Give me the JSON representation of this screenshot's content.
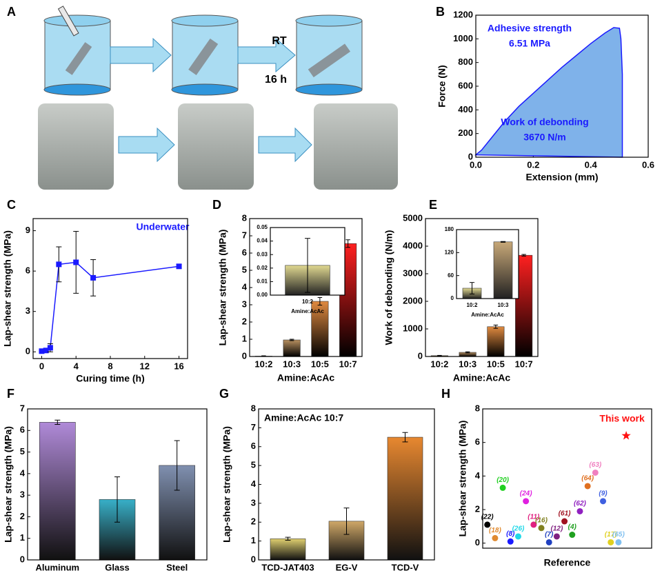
{
  "panel_a": {
    "label": "A",
    "annotations": [
      "RT",
      "16 h"
    ]
  },
  "chart_data": [
    {
      "label": "B",
      "type": "area",
      "x": [
        0,
        0.02,
        0.05,
        0.1,
        0.15,
        0.2,
        0.25,
        0.3,
        0.35,
        0.4,
        0.45,
        0.48,
        0.5,
        0.505,
        0.51,
        0.51
      ],
      "values": [
        20,
        60,
        150,
        300,
        430,
        540,
        650,
        760,
        860,
        960,
        1050,
        1095,
        1090,
        1000,
        700,
        0
      ],
      "color": "#1a1aff",
      "fill": "#7fb2ea",
      "xlim": [
        0,
        0.6
      ],
      "xticks": [
        {
          "value": 0,
          "label": "0.0"
        },
        0.2,
        0.4,
        0.6
      ],
      "ylim": [
        0,
        1200
      ],
      "yticks": [
        0,
        200,
        400,
        600,
        800,
        1000,
        1200
      ],
      "xlabel": "Extension (mm)",
      "ylabel": "Force (N)",
      "annotations": [
        "Adhesive strength",
        "6.51 MPa",
        "Work of debonding",
        "3670 N/m"
      ],
      "annotation_color": "#1a1aff"
    },
    {
      "label": "C",
      "type": "line",
      "x": [
        0,
        0.5,
        1,
        2,
        4,
        6,
        16
      ],
      "values": [
        0.05,
        0.1,
        0.3,
        6.5,
        6.65,
        5.5,
        6.35
      ],
      "errors": [
        0.05,
        0.1,
        0.3,
        1.3,
        2.3,
        1.35,
        0.15
      ],
      "color": "#1a1aff",
      "xlim": [
        -1,
        17
      ],
      "xticks": [
        0,
        4,
        8,
        12,
        16
      ],
      "ylim": [
        -0.5,
        9.9
      ],
      "yticks": [
        0,
        3,
        6,
        9
      ],
      "xlabel": "Curing time (h)",
      "ylabel": "Lap-shear strength (MPa)",
      "annotations": [
        "Underwater"
      ],
      "annotation_color": "#1a1aff"
    },
    {
      "label": "D",
      "type": "bar",
      "categories": [
        "10:2",
        "10:3",
        "10:5",
        "10:7"
      ],
      "values": [
        0.02,
        0.96,
        3.2,
        6.55
      ],
      "errors": [
        0.02,
        0.04,
        0.22,
        0.22
      ],
      "colors": [
        "#c8a850",
        "#b89060",
        "#e08a40",
        "#ff2020"
      ],
      "gradient_to": "#000000",
      "ylim": [
        0,
        8
      ],
      "yticks": [
        0,
        1,
        2,
        3,
        4,
        5,
        6,
        7,
        8
      ],
      "xlabel": "Amine:AcAc",
      "ylabel": "Lap-shear strength (MPa)",
      "inset": {
        "type": "bar",
        "categories": [
          "10:2"
        ],
        "values": [
          0.022
        ],
        "errors": [
          0.02
        ],
        "colors": [
          "#e0d890"
        ],
        "gradient_to": "#222222",
        "ylim": [
          0,
          0.05
        ],
        "yticks": [
          {
            "value": 0,
            "label": "0.00"
          },
          0.01,
          0.02,
          0.03,
          0.04,
          0.05
        ],
        "xlabel": "Amine:AcAc"
      }
    },
    {
      "label": "E",
      "type": "bar",
      "categories": [
        "10:2",
        "10:3",
        "10:5",
        "10:7"
      ],
      "values": [
        30,
        150,
        1080,
        3670
      ],
      "errors": [
        10,
        20,
        60,
        30
      ],
      "colors": [
        "#c8a850",
        "#b89060",
        "#e08a40",
        "#ff2020"
      ],
      "gradient_to": "#000000",
      "ylim": [
        0,
        5000
      ],
      "yticks": [
        0,
        1000,
        2000,
        3000,
        4000,
        5000
      ],
      "xlabel": "Amine:AcAc",
      "ylabel": "Work of debonding (N/m)",
      "inset": {
        "type": "bar",
        "categories": [
          "10:2",
          "10:3"
        ],
        "values": [
          27,
          148
        ],
        "errors": [
          15,
          1
        ],
        "colors": [
          "#e0d890",
          "#c8a878"
        ],
        "gradient_to": "#222222",
        "ylim": [
          0,
          180
        ],
        "yticks": [
          0,
          60,
          120,
          180
        ],
        "xlabel": "Amine:AcAc"
      }
    },
    {
      "label": "F",
      "type": "bar",
      "categories": [
        "Aluminum",
        "Glass",
        "Steel"
      ],
      "values": [
        6.38,
        2.8,
        4.38
      ],
      "errors": [
        0.1,
        1.05,
        1.15
      ],
      "colors": [
        "#b08ad8",
        "#38b0c8",
        "#8090b0"
      ],
      "gradient_to": "#111111",
      "ylim": [
        0,
        7
      ],
      "yticks": [
        0,
        1,
        2,
        3,
        4,
        5,
        6,
        7
      ],
      "ylabel": "Lap-shear strength (MPa)"
    },
    {
      "label": "G",
      "type": "bar",
      "categories": [
        "TCD-JAT403",
        "EG-V",
        "TCD-V"
      ],
      "values": [
        1.12,
        2.05,
        6.5
      ],
      "errors": [
        0.08,
        0.7,
        0.25
      ],
      "colors": [
        "#e0d070",
        "#d0a868",
        "#e88830"
      ],
      "gradient_to": "#111111",
      "ylim": [
        0,
        8
      ],
      "yticks": [
        0,
        1,
        2,
        3,
        4,
        5,
        6,
        7,
        8
      ],
      "ylabel": "Lap-shear strength (MPa)",
      "annotations": [
        "Amine:AcAc 10:7"
      ],
      "annotation_color": "#000000"
    },
    {
      "label": "H",
      "type": "scatter",
      "x": [
        1,
        2,
        3,
        4,
        5,
        6,
        7,
        8,
        9,
        10,
        11,
        12,
        13,
        14,
        15,
        16,
        17,
        18
      ],
      "values": [
        1.1,
        0.3,
        3.3,
        0.1,
        0.4,
        2.5,
        1.1,
        0.9,
        0.05,
        0.4,
        1.3,
        0.5,
        1.9,
        3.4,
        4.2,
        2.5,
        0.05,
        0.05
      ],
      "point_labels": [
        "(22)",
        "(18)",
        "(20)",
        "(8)",
        "(26)",
        "(24)",
        "(11)",
        "(16)",
        "(7)",
        "(12)",
        "(61)",
        "(4)",
        "(62)",
        "(64)",
        "(63)",
        "(9)",
        "(17)",
        "(65)"
      ],
      "colors": [
        "#000000",
        "#e08a30",
        "#20d020",
        "#1a1aff",
        "#20d8e8",
        "#e020e0",
        "#e02080",
        "#808020",
        "#2040c0",
        "#802080",
        "#a01020",
        "#20a020",
        "#9020c0",
        "#e07020",
        "#f080c0",
        "#4060e0",
        "#e0d020",
        "#80c0f0"
      ],
      "highlight": {
        "label": "This work",
        "x": 19,
        "value": 6.4,
        "color": "#ff1010",
        "marker": "star"
      },
      "xlim": [
        0.4,
        22.3
      ],
      "ylim": [
        -0.3,
        8
      ],
      "yticks": [
        0,
        2,
        4,
        6,
        8
      ],
      "xlabel": "Reference",
      "ylabel": "Lap-shear strength (MPa)"
    }
  ]
}
